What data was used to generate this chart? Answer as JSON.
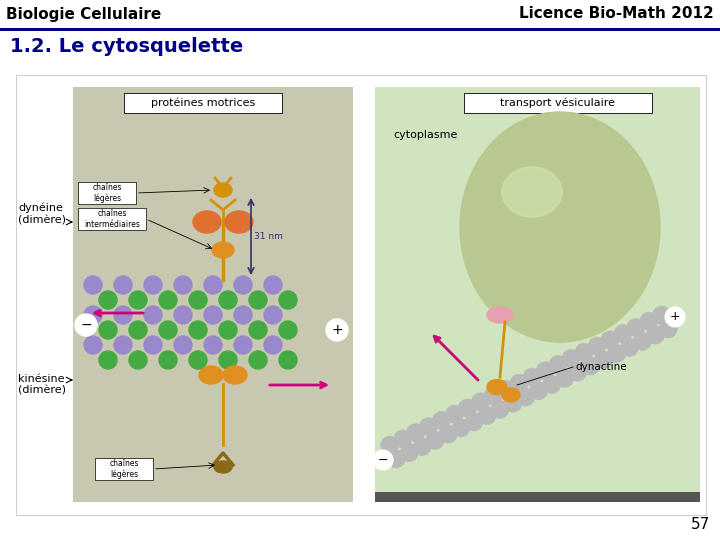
{
  "header_left": "Biologie Cellulaire",
  "header_right": "Licence Bio-Math 2012",
  "header_line_color": "#00008B",
  "title_text": "1.2. Le cytosquelette",
  "title_color": "#00008B",
  "title_fontsize": 14,
  "header_fontsize": 11,
  "page_number": "57",
  "page_number_fontsize": 11,
  "slide_bg": "#ffffff",
  "left_panel_color": "#c8c8b0",
  "right_panel_color": "#d0e4c0",
  "purple_bead": "#9988cc",
  "green_bead": "#44aa44",
  "gray_bead": "#b8b8b8",
  "dynein_color": "#d4900a",
  "motor_head_color": "#e07030",
  "arrow_color": "#cc0077",
  "nm_arrow_color": "#333366",
  "dynactine_color": "#e8a0b0"
}
